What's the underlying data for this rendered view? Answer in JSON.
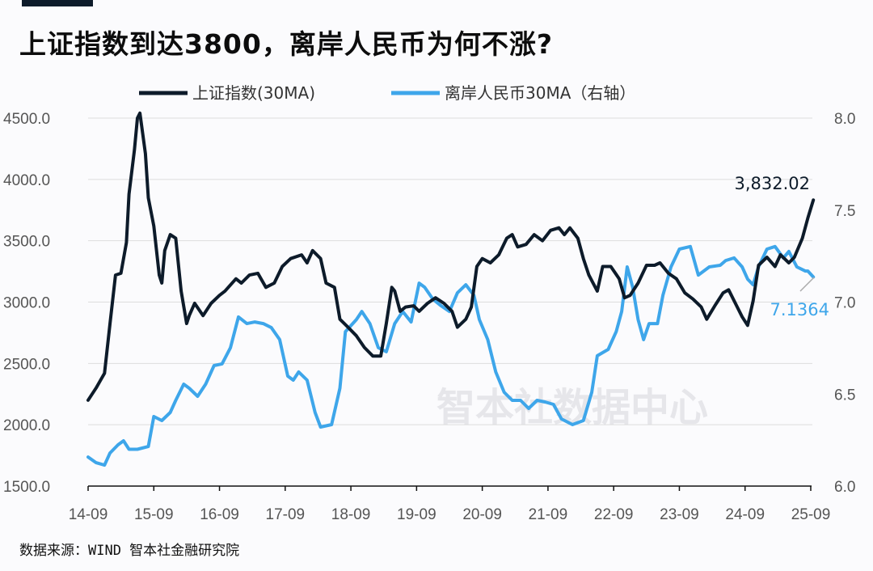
{
  "title": "上证指数到达3800，离岸人民币为何不涨?",
  "source": "数据来源：WIND 智本社金融研究院",
  "watermark": "智本社数据中心",
  "colors": {
    "shanghai": "#0d1b2a",
    "cnh": "#3ea6ea",
    "grid": "#dddddd",
    "accent_bar": "#0d1b2a"
  },
  "chart_data": {
    "type": "line",
    "title": "上证指数到达3800，离岸人民币为何不涨?",
    "legend_position": "top",
    "grid": true,
    "x_ticks": [
      "14-09",
      "15-09",
      "16-09",
      "17-09",
      "18-09",
      "19-09",
      "20-09",
      "21-09",
      "22-09",
      "23-09",
      "24-09",
      "25-09"
    ],
    "y_left": {
      "range": [
        1500,
        4500
      ],
      "ticks": [
        "1500.0",
        "2000.0",
        "2500.0",
        "3000.0",
        "3500.0",
        "4000.0",
        "4500.0"
      ]
    },
    "y_right": {
      "range": [
        6.0,
        8.0
      ],
      "ticks": [
        "6.0",
        "6.5",
        "7.0",
        "7.5",
        "8.0"
      ]
    },
    "annotations": {
      "shanghai_last": "3,832.02",
      "cnh_last": "7.1364"
    },
    "series": [
      {
        "name": "上证指数(30MA)",
        "axis": "left",
        "points": [
          [
            "2014-09-01",
            2200
          ],
          [
            "2014-10-15",
            2300
          ],
          [
            "2014-12-01",
            2420
          ],
          [
            "2015-01-01",
            2825
          ],
          [
            "2015-02-01",
            3220
          ],
          [
            "2015-03-01",
            3235
          ],
          [
            "2015-04-01",
            3485
          ],
          [
            "2015-04-15",
            3880
          ],
          [
            "2015-05-15",
            4240
          ],
          [
            "2015-06-01",
            4500
          ],
          [
            "2015-06-15",
            4540
          ],
          [
            "2015-07-15",
            4210
          ],
          [
            "2015-08-01",
            3850
          ],
          [
            "2015-09-01",
            3620
          ],
          [
            "2015-10-01",
            3220
          ],
          [
            "2015-10-15",
            3155
          ],
          [
            "2015-11-01",
            3420
          ],
          [
            "2015-12-01",
            3550
          ],
          [
            "2016-01-01",
            3520
          ],
          [
            "2016-02-01",
            3090
          ],
          [
            "2016-03-01",
            2825
          ],
          [
            "2016-03-15",
            2890
          ],
          [
            "2016-04-15",
            2990
          ],
          [
            "2016-06-01",
            2890
          ],
          [
            "2016-07-15",
            2990
          ],
          [
            "2016-09-01",
            3055
          ],
          [
            "2016-10-01",
            3090
          ],
          [
            "2016-12-01",
            3190
          ],
          [
            "2017-01-01",
            3155
          ],
          [
            "2017-02-15",
            3220
          ],
          [
            "2017-04-01",
            3235
          ],
          [
            "2017-05-15",
            3120
          ],
          [
            "2017-07-01",
            3155
          ],
          [
            "2017-08-15",
            3290
          ],
          [
            "2017-10-01",
            3355
          ],
          [
            "2017-12-01",
            3385
          ],
          [
            "2018-01-01",
            3320
          ],
          [
            "2018-02-01",
            3420
          ],
          [
            "2018-03-15",
            3355
          ],
          [
            "2018-04-15",
            3155
          ],
          [
            "2018-06-01",
            3120
          ],
          [
            "2018-07-01",
            2860
          ],
          [
            "2018-08-15",
            2795
          ],
          [
            "2018-10-01",
            2725
          ],
          [
            "2018-11-15",
            2630
          ],
          [
            "2019-01-01",
            2560
          ],
          [
            "2019-02-15",
            2560
          ],
          [
            "2019-03-15",
            2825
          ],
          [
            "2019-04-15",
            3120
          ],
          [
            "2019-05-01",
            3090
          ],
          [
            "2019-06-01",
            2925
          ],
          [
            "2019-07-01",
            2960
          ],
          [
            "2019-08-15",
            2970
          ],
          [
            "2019-09-15",
            2925
          ],
          [
            "2019-11-01",
            2990
          ],
          [
            "2019-12-15",
            3035
          ],
          [
            "2020-02-01",
            2990
          ],
          [
            "2020-03-15",
            2925
          ],
          [
            "2020-04-15",
            2795
          ],
          [
            "2020-06-01",
            2860
          ],
          [
            "2020-07-01",
            2960
          ],
          [
            "2020-08-01",
            3290
          ],
          [
            "2020-09-01",
            3355
          ],
          [
            "2020-10-15",
            3320
          ],
          [
            "2020-12-01",
            3385
          ],
          [
            "2021-01-15",
            3520
          ],
          [
            "2021-02-15",
            3550
          ],
          [
            "2021-03-15",
            3450
          ],
          [
            "2021-05-01",
            3470
          ],
          [
            "2021-06-15",
            3550
          ],
          [
            "2021-08-01",
            3500
          ],
          [
            "2021-09-15",
            3585
          ],
          [
            "2021-11-01",
            3605
          ],
          [
            "2021-12-01",
            3550
          ],
          [
            "2022-01-01",
            3605
          ],
          [
            "2022-02-15",
            3520
          ],
          [
            "2022-03-15",
            3355
          ],
          [
            "2022-04-15",
            3220
          ],
          [
            "2022-06-01",
            3090
          ],
          [
            "2022-07-01",
            3290
          ],
          [
            "2022-08-15",
            3290
          ],
          [
            "2022-10-01",
            3190
          ],
          [
            "2022-11-01",
            3035
          ],
          [
            "2022-12-01",
            3055
          ],
          [
            "2023-01-15",
            3155
          ],
          [
            "2023-03-01",
            3300
          ],
          [
            "2023-04-15",
            3300
          ],
          [
            "2023-05-15",
            3320
          ],
          [
            "2023-07-01",
            3235
          ],
          [
            "2023-08-15",
            3190
          ],
          [
            "2023-10-01",
            3075
          ],
          [
            "2023-11-15",
            3025
          ],
          [
            "2024-01-01",
            2960
          ],
          [
            "2024-02-01",
            2860
          ],
          [
            "2024-03-15",
            2970
          ],
          [
            "2024-05-01",
            3075
          ],
          [
            "2024-06-01",
            3100
          ],
          [
            "2024-07-15",
            2970
          ],
          [
            "2024-08-15",
            2880
          ],
          [
            "2024-09-15",
            2810
          ],
          [
            "2024-10-15",
            3010
          ],
          [
            "2024-11-15",
            3300
          ],
          [
            "2025-01-01",
            3365
          ],
          [
            "2025-02-15",
            3290
          ],
          [
            "2025-03-15",
            3385
          ],
          [
            "2025-05-01",
            3320
          ],
          [
            "2025-06-01",
            3365
          ],
          [
            "2025-07-15",
            3520
          ],
          [
            "2025-08-15",
            3685
          ],
          [
            "2025-09-15",
            3832.02
          ]
        ]
      },
      {
        "name": "离岸人民币30MA（右轴）",
        "axis": "right",
        "points": [
          [
            "2014-09-01",
            6.158
          ],
          [
            "2014-10-15",
            6.127
          ],
          [
            "2014-12-01",
            6.114
          ],
          [
            "2015-01-01",
            6.18
          ],
          [
            "2015-02-15",
            6.224
          ],
          [
            "2015-03-15",
            6.246
          ],
          [
            "2015-04-15",
            6.2
          ],
          [
            "2015-06-01",
            6.2
          ],
          [
            "2015-08-01",
            6.215
          ],
          [
            "2015-09-01",
            6.378
          ],
          [
            "2015-10-15",
            6.356
          ],
          [
            "2015-12-01",
            6.4
          ],
          [
            "2016-01-01",
            6.466
          ],
          [
            "2016-02-15",
            6.554
          ],
          [
            "2016-03-15",
            6.532
          ],
          [
            "2016-05-01",
            6.488
          ],
          [
            "2016-06-15",
            6.554
          ],
          [
            "2016-08-01",
            6.655
          ],
          [
            "2016-09-15",
            6.664
          ],
          [
            "2016-11-01",
            6.752
          ],
          [
            "2016-12-15",
            6.919
          ],
          [
            "2017-02-01",
            6.883
          ],
          [
            "2017-03-15",
            6.892
          ],
          [
            "2017-05-01",
            6.883
          ],
          [
            "2017-06-15",
            6.861
          ],
          [
            "2017-08-01",
            6.796
          ],
          [
            "2017-09-15",
            6.598
          ],
          [
            "2017-10-15",
            6.576
          ],
          [
            "2017-11-15",
            6.62
          ],
          [
            "2018-01-01",
            6.576
          ],
          [
            "2018-02-15",
            6.4
          ],
          [
            "2018-03-15",
            6.321
          ],
          [
            "2018-05-15",
            6.334
          ],
          [
            "2018-07-01",
            6.532
          ],
          [
            "2018-08-01",
            6.839
          ],
          [
            "2018-10-01",
            6.905
          ],
          [
            "2018-11-01",
            6.949
          ],
          [
            "2018-12-15",
            6.883
          ],
          [
            "2019-02-01",
            6.752
          ],
          [
            "2019-03-15",
            6.73
          ],
          [
            "2019-05-01",
            6.883
          ],
          [
            "2019-06-15",
            6.949
          ],
          [
            "2019-08-01",
            6.892
          ],
          [
            "2019-09-15",
            7.103
          ],
          [
            "2019-10-15",
            7.081
          ],
          [
            "2019-12-01",
            7.015
          ],
          [
            "2020-01-15",
            6.98
          ],
          [
            "2020-03-01",
            6.949
          ],
          [
            "2020-04-15",
            7.05
          ],
          [
            "2020-06-01",
            7.094
          ],
          [
            "2020-07-15",
            7.037
          ],
          [
            "2020-08-15",
            6.905
          ],
          [
            "2020-10-01",
            6.796
          ],
          [
            "2020-11-15",
            6.62
          ],
          [
            "2021-01-01",
            6.51
          ],
          [
            "2021-02-15",
            6.466
          ],
          [
            "2021-04-01",
            6.466
          ],
          [
            "2021-05-15",
            6.422
          ],
          [
            "2021-07-01",
            6.466
          ],
          [
            "2021-08-15",
            6.457
          ],
          [
            "2021-10-01",
            6.444
          ],
          [
            "2021-11-15",
            6.365
          ],
          [
            "2022-01-15",
            6.334
          ],
          [
            "2022-03-15",
            6.356
          ],
          [
            "2022-05-01",
            6.51
          ],
          [
            "2022-06-01",
            6.708
          ],
          [
            "2022-08-01",
            6.743
          ],
          [
            "2022-09-15",
            6.839
          ],
          [
            "2022-10-15",
            6.949
          ],
          [
            "2022-11-15",
            7.191
          ],
          [
            "2022-12-15",
            7.081
          ],
          [
            "2023-01-15",
            6.905
          ],
          [
            "2023-02-15",
            6.796
          ],
          [
            "2023-03-15",
            6.883
          ],
          [
            "2023-05-01",
            6.883
          ],
          [
            "2023-06-01",
            7.037
          ],
          [
            "2023-07-15",
            7.191
          ],
          [
            "2023-09-01",
            7.288
          ],
          [
            "2023-11-01",
            7.302
          ],
          [
            "2023-12-15",
            7.147
          ],
          [
            "2024-02-15",
            7.191
          ],
          [
            "2024-04-15",
            7.2
          ],
          [
            "2024-05-15",
            7.226
          ],
          [
            "2024-07-01",
            7.24
          ],
          [
            "2024-08-15",
            7.191
          ],
          [
            "2024-09-15",
            7.125
          ],
          [
            "2024-10-15",
            7.094
          ],
          [
            "2024-11-15",
            7.191
          ],
          [
            "2025-01-01",
            7.288
          ],
          [
            "2025-02-15",
            7.302
          ],
          [
            "2025-04-01",
            7.24
          ],
          [
            "2025-05-01",
            7.275
          ],
          [
            "2025-06-15",
            7.191
          ],
          [
            "2025-08-01",
            7.169
          ],
          [
            "2025-08-15",
            7.169
          ],
          [
            "2025-09-15",
            7.1364
          ]
        ]
      }
    ]
  }
}
